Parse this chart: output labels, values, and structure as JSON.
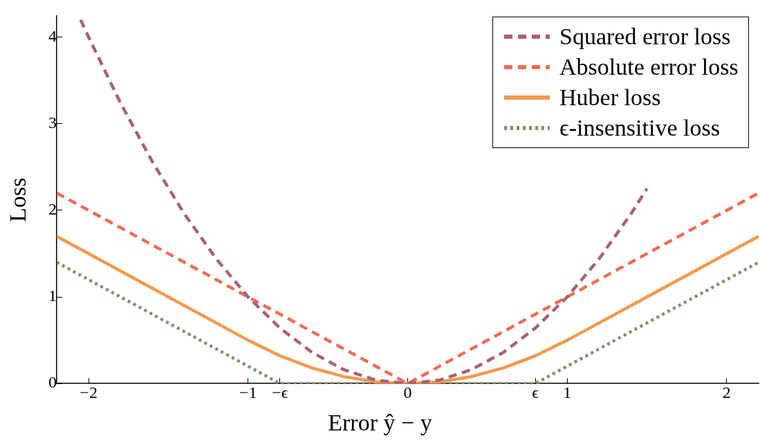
{
  "chart_data": {
    "type": "line",
    "xlabel": "Error ŷ − y",
    "ylabel": "Loss",
    "xlim": [
      -2.2,
      2.2
    ],
    "ylim": [
      0,
      4.25
    ],
    "xticks": [
      {
        "value": -2,
        "label": "−2"
      },
      {
        "value": -1,
        "label": "−1"
      },
      {
        "value": -0.8,
        "label": "−ϵ"
      },
      0,
      {
        "value": 0.8,
        "label": "ϵ"
      },
      1,
      2
    ],
    "yticks": [
      0,
      1,
      2,
      3,
      4
    ],
    "grid": false,
    "legend": "top right",
    "series": [
      {
        "name": "Squared error loss",
        "color": "#a8607c",
        "line_style": "dashed",
        "x": [
          -2.05,
          -2,
          -1.8,
          -1.6,
          -1.4,
          -1.2,
          -1,
          -0.8,
          -0.6,
          -0.4,
          -0.2,
          0,
          0.2,
          0.4,
          0.6,
          0.8,
          1,
          1.2,
          1.4,
          1.5
        ],
        "values": [
          4.2,
          4,
          3.24,
          2.56,
          1.96,
          1.44,
          1,
          0.64,
          0.36,
          0.16,
          0.04,
          0,
          0.04,
          0.16,
          0.36,
          0.64,
          1,
          1.44,
          1.96,
          2.25
        ]
      },
      {
        "name": "Absolute error loss",
        "color": "#f26b55",
        "line_style": "dashed",
        "x": [
          -2.2,
          0,
          2.2
        ],
        "values": [
          2.2,
          0,
          2.2
        ]
      },
      {
        "name": "Huber loss",
        "color": "#f7994a",
        "line_style": "solid",
        "x": [
          -2.2,
          -1,
          -0.8,
          -0.6,
          -0.4,
          -0.2,
          0,
          0.2,
          0.4,
          0.6,
          0.8,
          1,
          2.2
        ],
        "values": [
          1.7,
          0.5,
          0.32,
          0.18,
          0.08,
          0.02,
          0,
          0.02,
          0.08,
          0.18,
          0.32,
          0.5,
          1.7
        ]
      },
      {
        "name": "ϵ-insensitive loss",
        "color": "#7a9468",
        "line_style": "dotted",
        "x": [
          -2.2,
          -0.8,
          0.8,
          2.2
        ],
        "values": [
          1.4,
          0,
          0,
          1.4
        ]
      }
    ]
  }
}
